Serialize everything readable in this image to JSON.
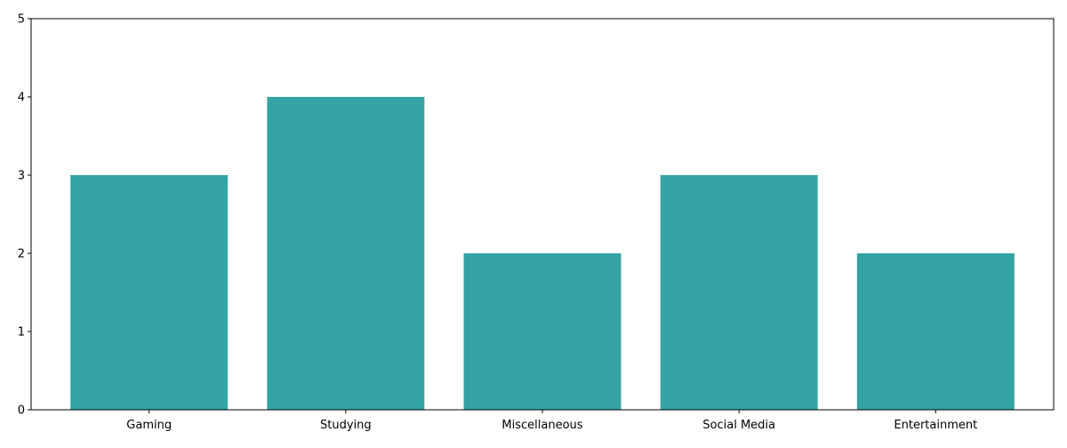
{
  "chart_data": {
    "type": "bar",
    "categories": [
      "Gaming",
      "Studying",
      "Miscellaneous",
      "Social Media",
      "Entertainment"
    ],
    "values": [
      3,
      4,
      2,
      3,
      2
    ],
    "ylim": [
      0,
      5
    ],
    "yticks": [
      0,
      1,
      2,
      3,
      4,
      5
    ],
    "grid": false,
    "colors": {
      "bar": "#33a3a3",
      "axis": "#000000"
    }
  }
}
